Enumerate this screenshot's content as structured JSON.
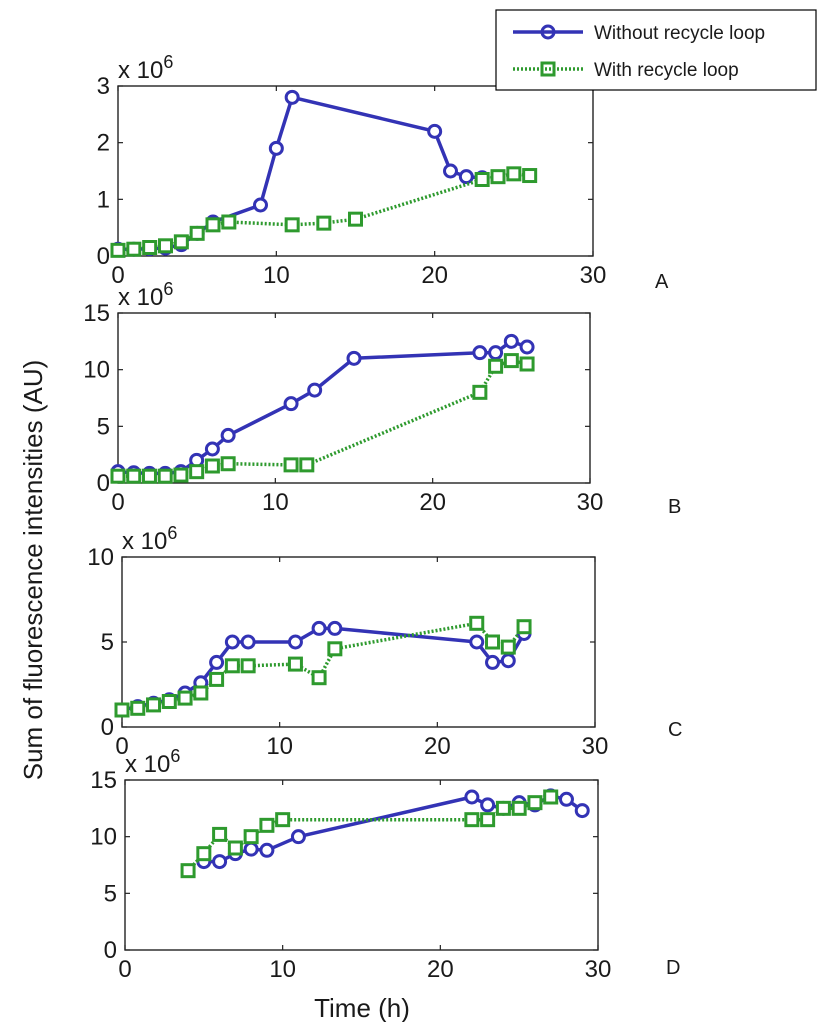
{
  "ylabel": "Sum of fluorescence intensities (AU)",
  "xlabel": "Time (h)",
  "legend": {
    "placement": "top-right",
    "entries": [
      {
        "label": "Without recycle loop",
        "color": "#3333b5",
        "marker": "circle"
      },
      {
        "label": "With recycle loop",
        "color": "#2e9a2e",
        "marker": "square"
      }
    ]
  },
  "chart_data": [
    {
      "type": "line",
      "panel_label": "A",
      "scale_label": "x 10",
      "scale_exponent": "6",
      "xlim": [
        0,
        30
      ],
      "ylim": [
        0,
        3
      ],
      "xticks": [
        "0",
        "10",
        "20",
        "30"
      ],
      "yticks": [
        "0",
        "1",
        "2",
        "3"
      ],
      "series": [
        {
          "name": "Without recycle loop",
          "x": [
            0,
            1,
            2,
            3,
            4,
            5,
            6,
            9,
            10,
            11,
            20,
            21,
            22,
            23
          ],
          "y": [
            0.12,
            0.12,
            0.13,
            0.14,
            0.2,
            0.4,
            0.6,
            0.9,
            1.9,
            2.8,
            2.2,
            1.5,
            1.4,
            1.38
          ]
        },
        {
          "name": "With recycle loop",
          "x": [
            0,
            1,
            2,
            3,
            4,
            5,
            6,
            7,
            11,
            13,
            15,
            23,
            24,
            25,
            26
          ],
          "y": [
            0.1,
            0.12,
            0.15,
            0.18,
            0.25,
            0.4,
            0.55,
            0.6,
            0.55,
            0.58,
            0.65,
            1.35,
            1.4,
            1.45,
            1.42
          ]
        }
      ]
    },
    {
      "type": "line",
      "panel_label": "B",
      "scale_label": "x 10",
      "scale_exponent": "6",
      "xlim": [
        0,
        30
      ],
      "ylim": [
        0,
        15
      ],
      "xticks": [
        "0",
        "10",
        "20",
        "30"
      ],
      "yticks": [
        "0",
        "5",
        "10",
        "15"
      ],
      "series": [
        {
          "name": "Without recycle loop",
          "x": [
            0,
            1,
            2,
            3,
            4,
            5,
            6,
            7,
            11,
            12.5,
            15,
            23,
            24,
            25,
            26
          ],
          "y": [
            1.0,
            0.9,
            0.85,
            0.85,
            1.0,
            2.0,
            3.0,
            4.2,
            7.0,
            8.2,
            11.0,
            11.5,
            11.5,
            12.5,
            12.0
          ]
        },
        {
          "name": "With recycle loop",
          "x": [
            0,
            1,
            2,
            3,
            4,
            5,
            6,
            7,
            11,
            12,
            23,
            24,
            25,
            26
          ],
          "y": [
            0.6,
            0.6,
            0.6,
            0.6,
            0.7,
            1.0,
            1.5,
            1.7,
            1.6,
            1.6,
            8.0,
            10.3,
            10.8,
            10.5
          ]
        }
      ]
    },
    {
      "type": "line",
      "panel_label": "C",
      "scale_label": "x 10",
      "scale_exponent": "6",
      "xlim": [
        0,
        30
      ],
      "ylim": [
        0,
        10
      ],
      "xticks": [
        "0",
        "10",
        "20",
        "30"
      ],
      "yticks": [
        "0",
        "5",
        "10"
      ],
      "series": [
        {
          "name": "Without recycle loop",
          "x": [
            0,
            1,
            2,
            3,
            4,
            5,
            6,
            7,
            8,
            11,
            12.5,
            13.5,
            22.5,
            23.5,
            24.5,
            25.5
          ],
          "y": [
            1.0,
            1.2,
            1.4,
            1.6,
            2.0,
            2.6,
            3.8,
            5.0,
            5.0,
            5.0,
            5.8,
            5.8,
            5.0,
            3.8,
            3.9,
            5.5
          ]
        },
        {
          "name": "With recycle loop",
          "x": [
            0,
            1,
            2,
            3,
            4,
            5,
            6,
            7,
            8,
            11,
            12.5,
            13.5,
            22.5,
            23.5,
            24.5,
            25.5
          ],
          "y": [
            1.0,
            1.1,
            1.3,
            1.5,
            1.7,
            2.0,
            2.8,
            3.6,
            3.6,
            3.7,
            2.9,
            4.6,
            6.1,
            5.0,
            4.7,
            5.9
          ]
        }
      ]
    },
    {
      "type": "line",
      "panel_label": "D",
      "scale_label": "x 10",
      "scale_exponent": "6",
      "xlim": [
        0,
        30
      ],
      "ylim": [
        0,
        15
      ],
      "xticks": [
        "0",
        "10",
        "20",
        "30"
      ],
      "yticks": [
        "0",
        "5",
        "10",
        "15"
      ],
      "series": [
        {
          "name": "Without recycle loop",
          "x": [
            5,
            6,
            7,
            8,
            9,
            11,
            22,
            23,
            24,
            25,
            26,
            27,
            28,
            29
          ],
          "y": [
            7.8,
            7.8,
            8.5,
            8.9,
            8.8,
            10.0,
            13.5,
            12.8,
            12.5,
            13.0,
            12.8,
            13.6,
            13.3,
            12.3
          ]
        },
        {
          "name": "With recycle loop",
          "x": [
            4,
            5,
            6,
            7,
            8,
            9,
            10,
            22,
            23,
            24,
            25,
            26,
            27
          ],
          "y": [
            7.0,
            8.5,
            10.2,
            9.0,
            10.0,
            11.0,
            11.5,
            11.5,
            11.5,
            12.5,
            12.5,
            13.0,
            13.5
          ]
        }
      ]
    }
  ]
}
